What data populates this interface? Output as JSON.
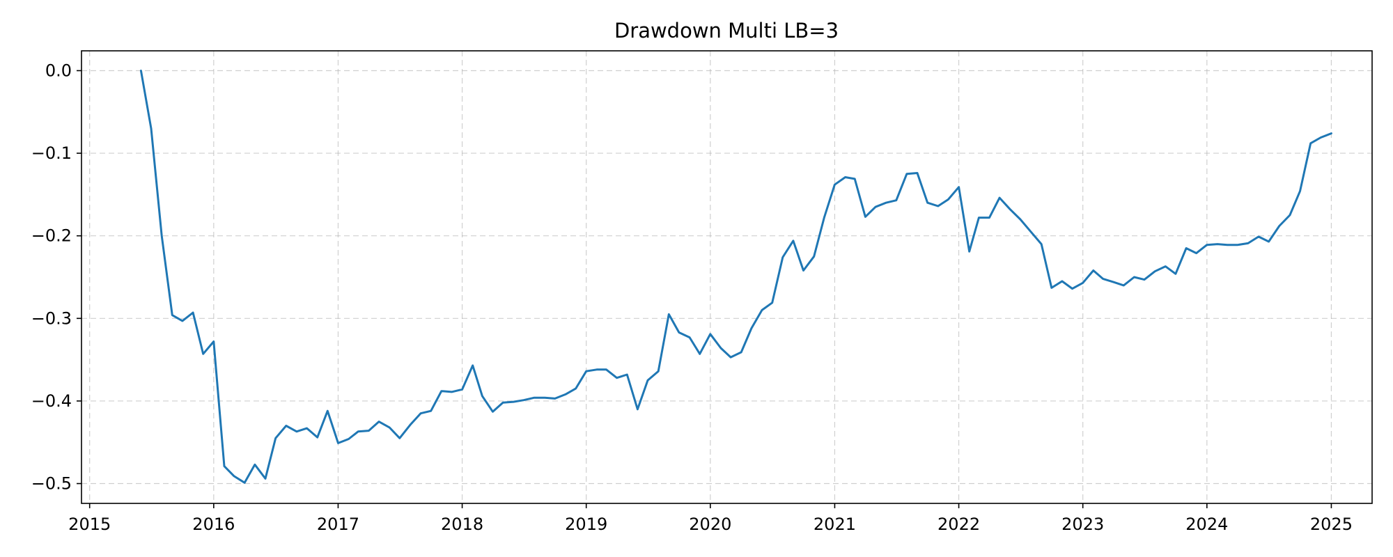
{
  "chart_data": {
    "type": "line",
    "title": "Drawdown Multi LB=3",
    "xlabel": "",
    "ylabel": "",
    "x_axis_type": "date",
    "xlim": [
      "2014-12-08",
      "2025-05-01"
    ],
    "ylim": [
      -0.524,
      0.024
    ],
    "grid": true,
    "legend": "none",
    "colors": {
      "series": "#1f77b4",
      "grid": "#b0b0b0"
    },
    "x_ticks": [
      {
        "label": "2015",
        "value": "2015-01-01"
      },
      {
        "label": "2016",
        "value": "2016-01-01"
      },
      {
        "label": "2017",
        "value": "2017-01-01"
      },
      {
        "label": "2018",
        "value": "2018-01-01"
      },
      {
        "label": "2019",
        "value": "2019-01-01"
      },
      {
        "label": "2020",
        "value": "2020-01-01"
      },
      {
        "label": "2021",
        "value": "2021-01-01"
      },
      {
        "label": "2022",
        "value": "2022-01-01"
      },
      {
        "label": "2023",
        "value": "2023-01-01"
      },
      {
        "label": "2024",
        "value": "2024-01-01"
      },
      {
        "label": "2025",
        "value": "2025-01-01"
      }
    ],
    "y_ticks": [
      {
        "label": "0.0",
        "value": 0.0
      },
      {
        "label": "−0.1",
        "value": -0.1
      },
      {
        "label": "−0.2",
        "value": -0.2
      },
      {
        "label": "−0.3",
        "value": -0.3
      },
      {
        "label": "−0.4",
        "value": -0.4
      },
      {
        "label": "−0.5",
        "value": -0.5
      }
    ],
    "series": [
      {
        "x": [
          "2015-06-01",
          "2015-07-01",
          "2015-08-01",
          "2015-09-01",
          "2015-10-01",
          "2015-11-01",
          "2015-12-01",
          "2016-01-01",
          "2016-02-01",
          "2016-03-01",
          "2016-04-01",
          "2016-05-01",
          "2016-06-01",
          "2016-07-01",
          "2016-08-01",
          "2016-09-01",
          "2016-10-01",
          "2016-11-01",
          "2016-12-01",
          "2017-01-01",
          "2017-02-01",
          "2017-03-01",
          "2017-04-01",
          "2017-05-01",
          "2017-06-01",
          "2017-07-01",
          "2017-08-01",
          "2017-09-01",
          "2017-10-01",
          "2017-11-01",
          "2017-12-01",
          "2018-01-01",
          "2018-02-01",
          "2018-03-01",
          "2018-04-01",
          "2018-05-01",
          "2018-06-01",
          "2018-07-01",
          "2018-08-01",
          "2018-09-01",
          "2018-10-01",
          "2018-11-01",
          "2018-12-01",
          "2019-01-01",
          "2019-02-01",
          "2019-03-01",
          "2019-04-01",
          "2019-05-01",
          "2019-06-01",
          "2019-07-01",
          "2019-08-01",
          "2019-09-01",
          "2019-10-01",
          "2019-11-01",
          "2019-12-01",
          "2020-01-01",
          "2020-02-01",
          "2020-03-01",
          "2020-04-01",
          "2020-05-01",
          "2020-06-01",
          "2020-07-01",
          "2020-08-01",
          "2020-09-01",
          "2020-10-01",
          "2020-11-01",
          "2020-12-01",
          "2021-01-01",
          "2021-02-01",
          "2021-03-01",
          "2021-04-01",
          "2021-05-01",
          "2021-06-01",
          "2021-07-01",
          "2021-08-01",
          "2021-09-01",
          "2021-10-01",
          "2021-11-01",
          "2021-12-01",
          "2022-01-01",
          "2022-02-01",
          "2022-03-01",
          "2022-04-01",
          "2022-05-01",
          "2022-06-01",
          "2022-07-01",
          "2022-08-01",
          "2022-09-01",
          "2022-10-01",
          "2022-11-01",
          "2022-12-01",
          "2023-01-01",
          "2023-02-01",
          "2023-03-01",
          "2023-04-01",
          "2023-05-01",
          "2023-06-01",
          "2023-07-01",
          "2023-08-01",
          "2023-09-01",
          "2023-10-01",
          "2023-11-01",
          "2023-12-01",
          "2024-01-01",
          "2024-02-01",
          "2024-03-01",
          "2024-04-01",
          "2024-05-01",
          "2024-06-01",
          "2024-07-01",
          "2024-08-01",
          "2024-09-01",
          "2024-10-01",
          "2024-11-01",
          "2024-12-01",
          "2025-01-01"
        ],
        "y": [
          0.0,
          -0.07,
          -0.2,
          -0.296,
          -0.303,
          -0.293,
          -0.343,
          -0.328,
          -0.479,
          -0.491,
          -0.499,
          -0.477,
          -0.494,
          -0.445,
          -0.43,
          -0.437,
          -0.433,
          -0.444,
          -0.412,
          -0.451,
          -0.446,
          -0.437,
          -0.436,
          -0.425,
          -0.432,
          -0.445,
          -0.429,
          -0.415,
          -0.412,
          -0.388,
          -0.389,
          -0.386,
          -0.357,
          -0.394,
          -0.413,
          -0.402,
          -0.401,
          -0.399,
          -0.396,
          -0.396,
          -0.397,
          -0.392,
          -0.385,
          -0.364,
          -0.362,
          -0.362,
          -0.372,
          -0.368,
          -0.41,
          -0.375,
          -0.364,
          -0.295,
          -0.317,
          -0.323,
          -0.343,
          -0.319,
          -0.336,
          -0.347,
          -0.341,
          -0.312,
          -0.29,
          -0.281,
          -0.226,
          -0.206,
          -0.242,
          -0.225,
          -0.178,
          -0.138,
          -0.129,
          -0.131,
          -0.177,
          -0.165,
          -0.16,
          -0.157,
          -0.125,
          -0.124,
          -0.16,
          -0.164,
          -0.156,
          -0.141,
          -0.219,
          -0.178,
          -0.178,
          -0.154,
          -0.168,
          -0.18,
          -0.195,
          -0.21,
          -0.263,
          -0.255,
          -0.264,
          -0.257,
          -0.242,
          -0.252,
          -0.256,
          -0.26,
          -0.25,
          -0.253,
          -0.243,
          -0.237,
          -0.246,
          -0.215,
          -0.221,
          -0.211,
          -0.21,
          -0.211,
          -0.211,
          -0.209,
          -0.201,
          -0.207,
          -0.188,
          -0.175,
          -0.146,
          -0.088,
          -0.081,
          -0.076
        ]
      }
    ]
  }
}
